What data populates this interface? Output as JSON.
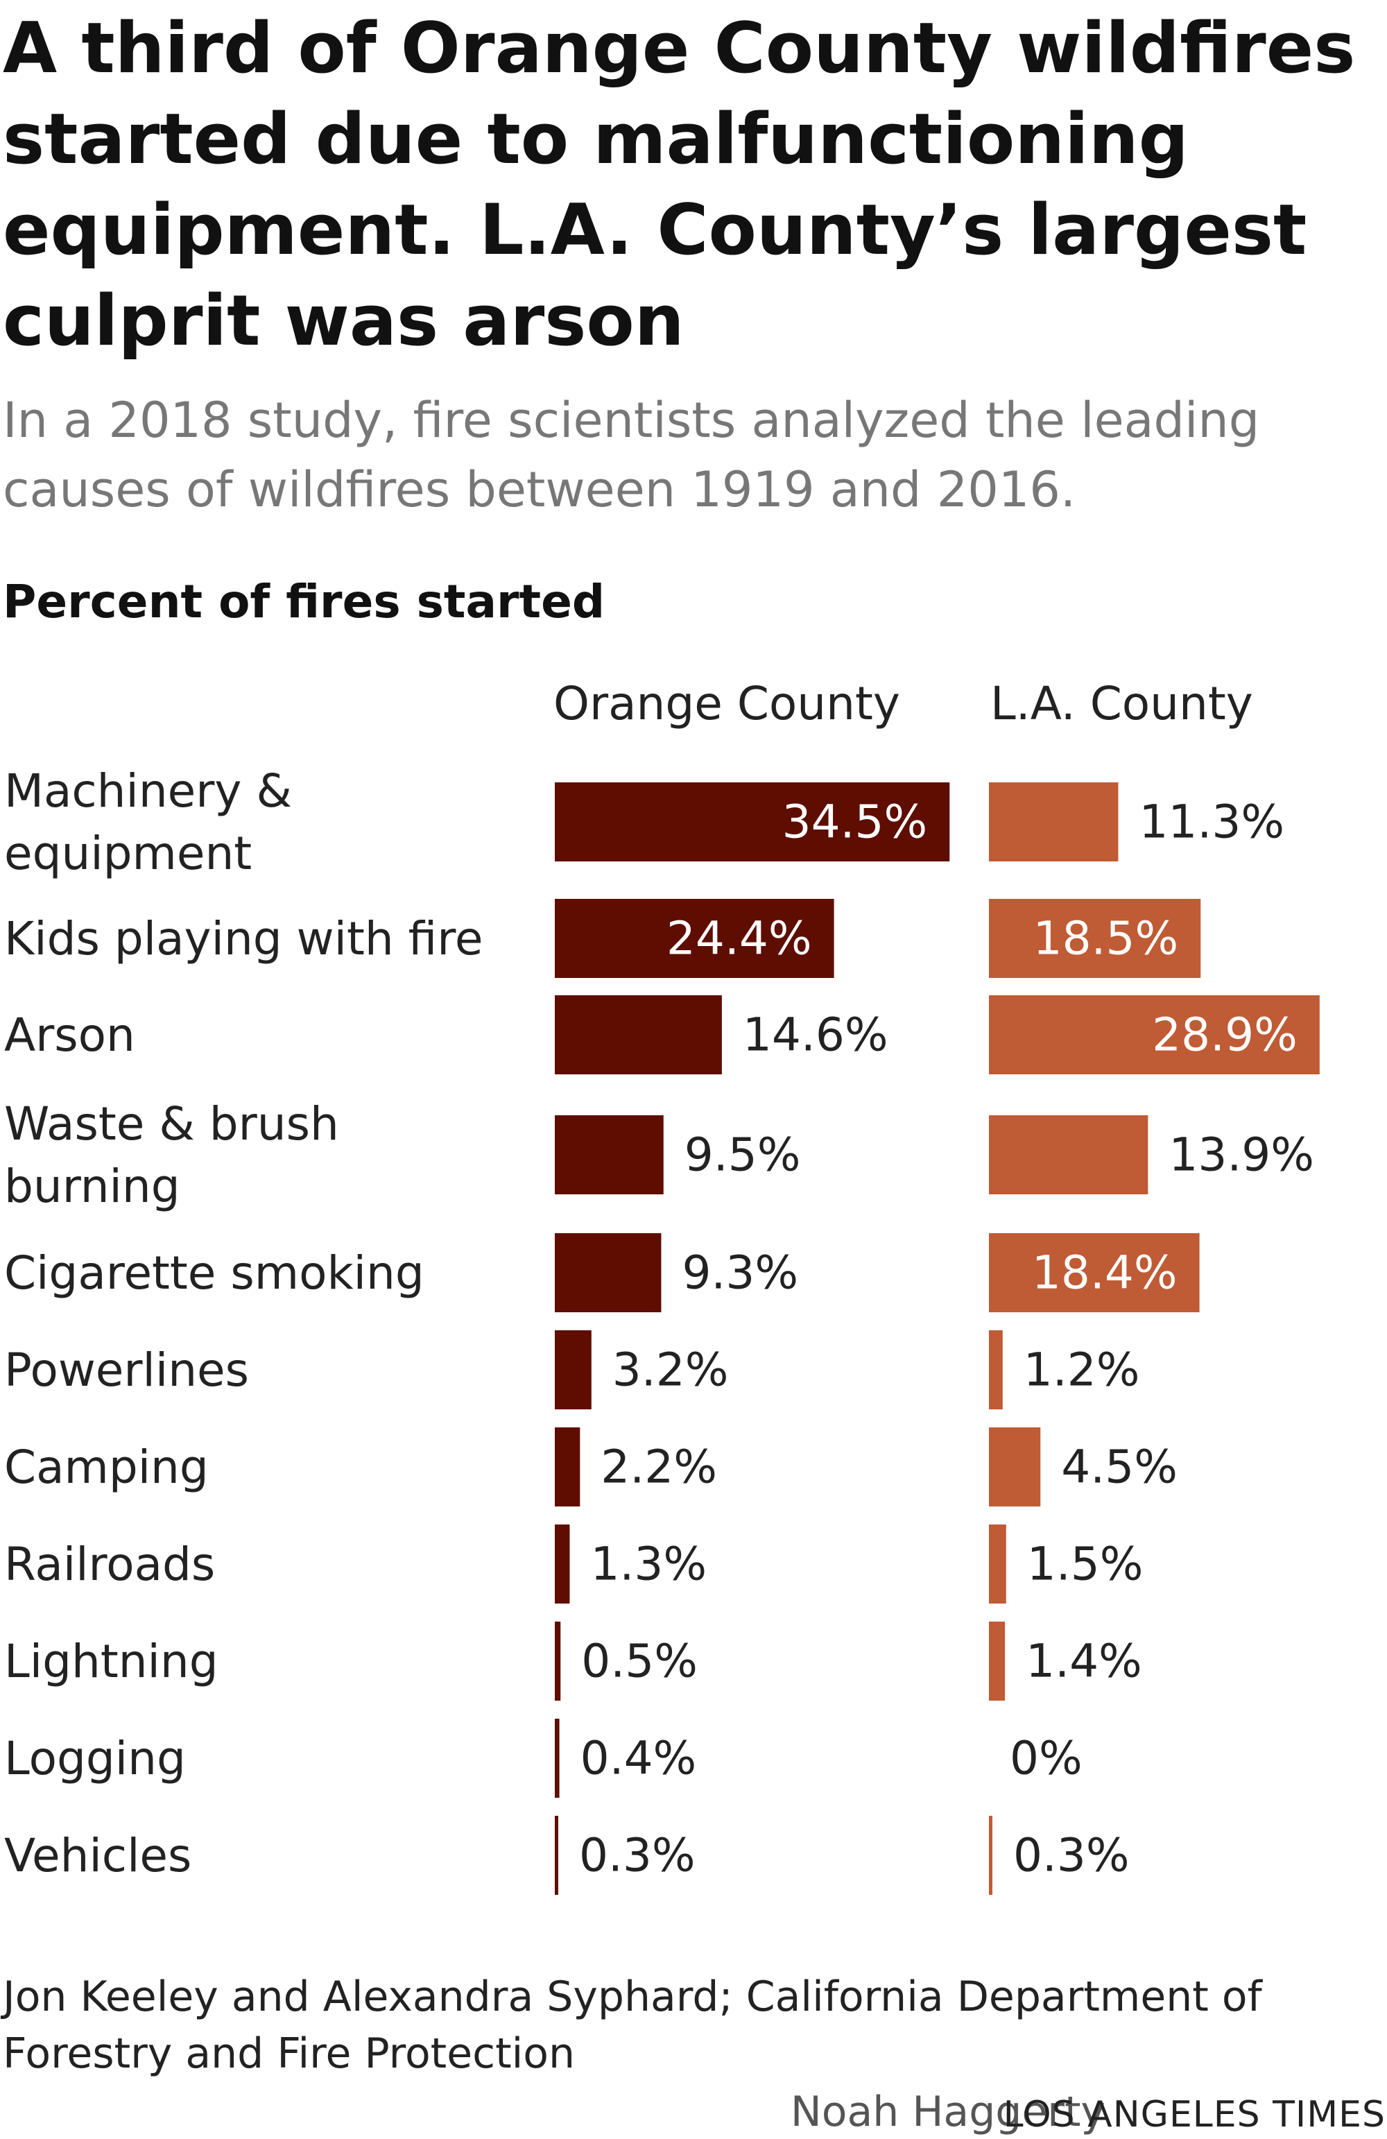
{
  "title": "A third of Orange County wildfires started due to malfunctioning equipment. L.A. County’s largest culprit was arson",
  "subtitle": "In a 2018 study, fire scientists analyzed the leading causes of wildfires between 1919 and 2016.",
  "source": "Jon Keeley and Alexandra Syphard; California Department of Forestry and Fire Protection",
  "credit": "Noah Haggerty",
  "publisher": "LOS ANGELES TIMES",
  "colors": {
    "orange_county": "#5e0d00",
    "la_county": "#bf5b35",
    "inside_label": "#ffffff",
    "outside_label": "#222222"
  },
  "chart_data": {
    "type": "bar",
    "orientation": "horizontal",
    "value_label": "Percent of fires started",
    "categories": [
      "Machinery & equipment",
      "Kids playing with fire",
      "Arson",
      "Waste & brush burning",
      "Cigarette smoking",
      "Powerlines",
      "Camping",
      "Railroads",
      "Lightning",
      "Logging",
      "Vehicles"
    ],
    "category_lines": [
      [
        "Machinery &",
        "equipment"
      ],
      [
        "Kids playing with fire"
      ],
      [
        "Arson"
      ],
      [
        "Waste & brush",
        "burning"
      ],
      [
        "Cigarette smoking"
      ],
      [
        "Powerlines"
      ],
      [
        "Camping"
      ],
      [
        "Railroads"
      ],
      [
        "Lightning"
      ],
      [
        "Logging"
      ],
      [
        "Vehicles"
      ]
    ],
    "series": [
      {
        "name": "Orange County",
        "values": [
          34.5,
          24.4,
          14.6,
          9.5,
          9.3,
          3.2,
          2.2,
          1.3,
          0.5,
          0.4,
          0.3
        ],
        "labels": [
          "34.5%",
          "24.4%",
          "14.6%",
          "9.5%",
          "9.3%",
          "3.2%",
          "2.2%",
          "1.3%",
          "0.5%",
          "0.4%",
          "0.3%"
        ]
      },
      {
        "name": "L.A. County",
        "values": [
          11.3,
          18.5,
          28.9,
          13.9,
          18.4,
          1.2,
          4.5,
          1.5,
          1.4,
          0,
          0.3
        ],
        "labels": [
          "11.3%",
          "18.5%",
          "28.9%",
          "13.9%",
          "18.4%",
          "1.2%",
          "4.5%",
          "1.5%",
          "1.4%",
          "0%",
          "0.3%"
        ]
      }
    ],
    "xlim": [
      0,
      35
    ],
    "grid": false,
    "legend": "column headers above bars"
  }
}
